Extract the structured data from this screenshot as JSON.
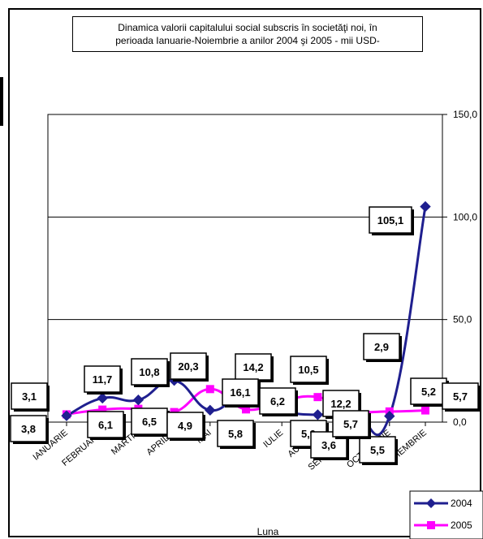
{
  "chart_data": {
    "type": "line",
    "title_line1": "Dinamica  valorii capitalului social subscris în societăţi noi,  în",
    "title_line2": "perioada Ianuarie-Noiembrie  a anilor 2004 şi 2005  - mii  USD-",
    "xlabel": "Luna",
    "categories": [
      "IANUARIE",
      "FEBRUARIE",
      "MARTIE",
      "APRILIE",
      "MAI",
      "IUNIE",
      "IULIE",
      "AUGUST",
      "SEPTEMBRIE",
      "OCTOMBRIE",
      "NOIEMBRIE"
    ],
    "ylim": [
      0,
      150
    ],
    "yticks": [
      "0,0",
      "50,0",
      "100,0",
      "150,0"
    ],
    "grid": true,
    "legend_position": "bottom-right",
    "series": [
      {
        "name": "2004",
        "color": "#1f1f8f",
        "marker": "diamond",
        "values": [
          3.1,
          11.7,
          10.8,
          20.3,
          5.8,
          14.2,
          5.9,
          3.6,
          5.5,
          2.9,
          105.1
        ],
        "labels": [
          "3,1",
          "11,7",
          "10,8",
          "20,3",
          "5,8",
          "14,2",
          "5,9",
          "3,6",
          "5,5",
          "2,9",
          "105,1"
        ]
      },
      {
        "name": "2005",
        "color": "#ff00ff",
        "marker": "square",
        "values": [
          3.8,
          6.1,
          6.5,
          4.9,
          16.1,
          6.2,
          10.5,
          12.2,
          5.7,
          5.2,
          5.7
        ],
        "labels": [
          "3,8",
          "6,1",
          "6,5",
          "4,9",
          "16,1",
          "6,2",
          "10,5",
          "12,2",
          "5,7",
          "5,2",
          "5,7"
        ]
      }
    ]
  }
}
